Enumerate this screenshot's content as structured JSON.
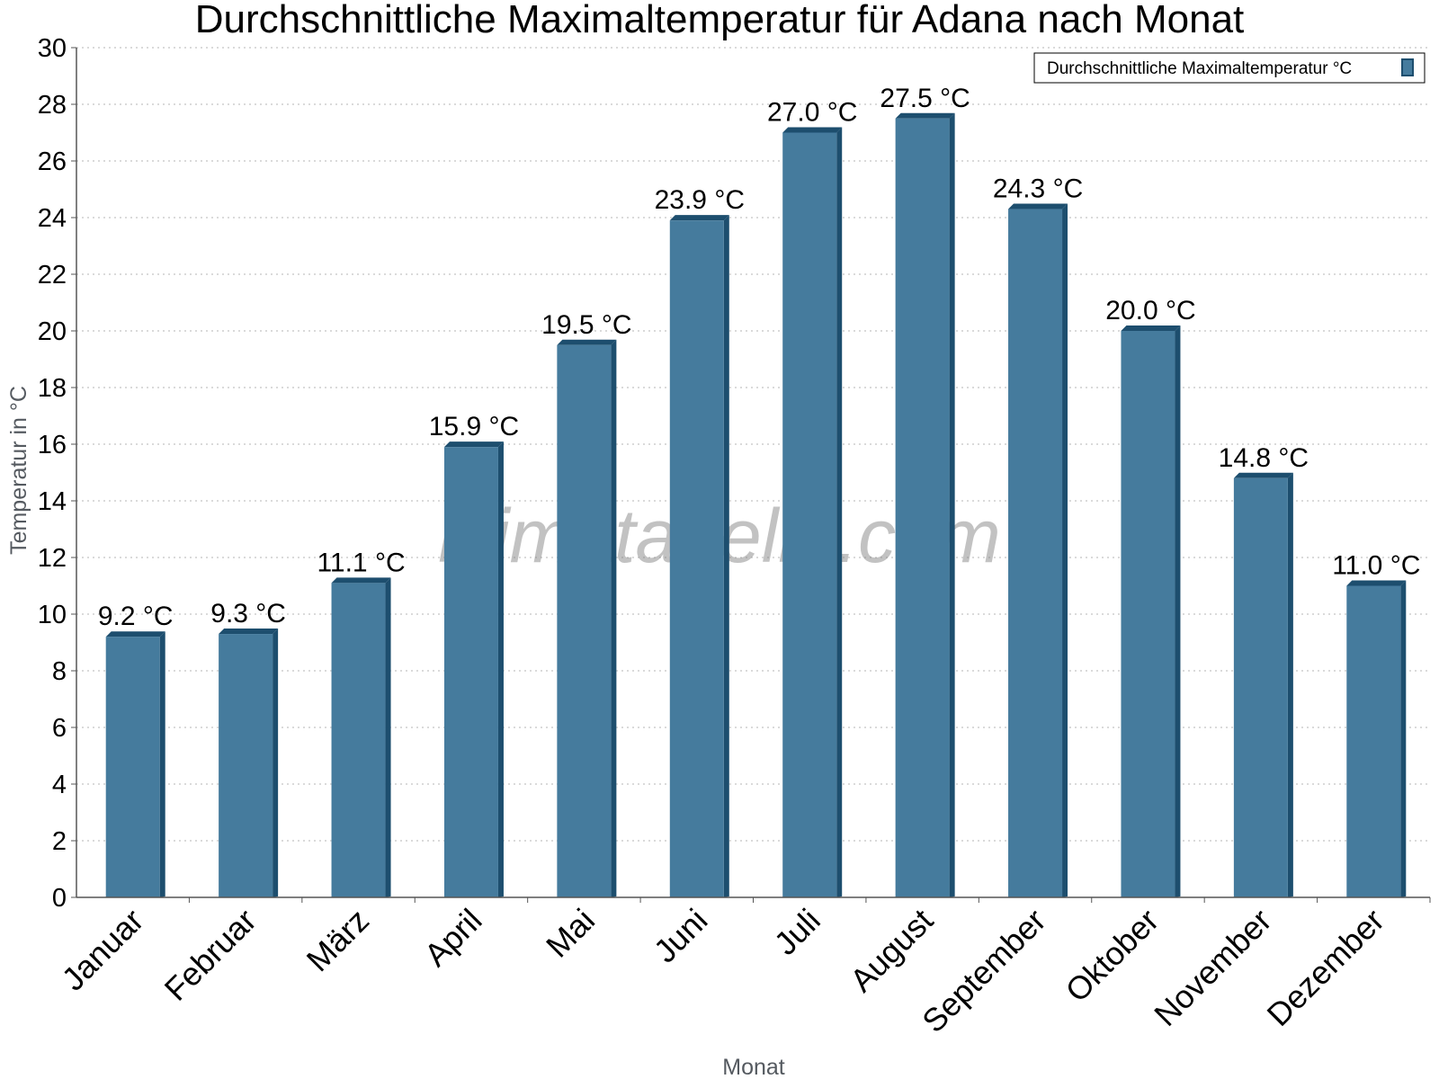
{
  "chart_data": {
    "type": "bar",
    "title": "Durchschnittliche Maximaltemperatur für Adana nach Monat",
    "xlabel": "Monat",
    "ylabel": "Temperatur in °C",
    "categories": [
      "Januar",
      "Februar",
      "März",
      "April",
      "Mai",
      "Juni",
      "Juli",
      "August",
      "September",
      "Oktober",
      "November",
      "Dezember"
    ],
    "series": [
      {
        "name": "Durchschnittliche Maximaltemperatur °C",
        "values": [
          9.2,
          9.3,
          11.1,
          15.9,
          19.5,
          23.9,
          27.0,
          27.5,
          24.3,
          20.0,
          14.8,
          11.0
        ],
        "labels": [
          "9.2 °C",
          "9.3 °C",
          "11.1 °C",
          "15.9 °C",
          "19.5 °C",
          "23.9 °C",
          "27.0 °C",
          "27.5 °C",
          "24.3 °C",
          "20.0 °C",
          "14.8 °C",
          "11.0 °C"
        ]
      }
    ],
    "ylim": [
      0,
      30
    ],
    "yticks": [
      0,
      2,
      4,
      6,
      8,
      10,
      12,
      14,
      16,
      18,
      20,
      22,
      24,
      26,
      28,
      30
    ],
    "grid": true,
    "legend_position": "top-right",
    "bar_color": "#457b9d",
    "bar_shade_color": "#1d4e6e",
    "watermark": "klimatabelle.com"
  }
}
